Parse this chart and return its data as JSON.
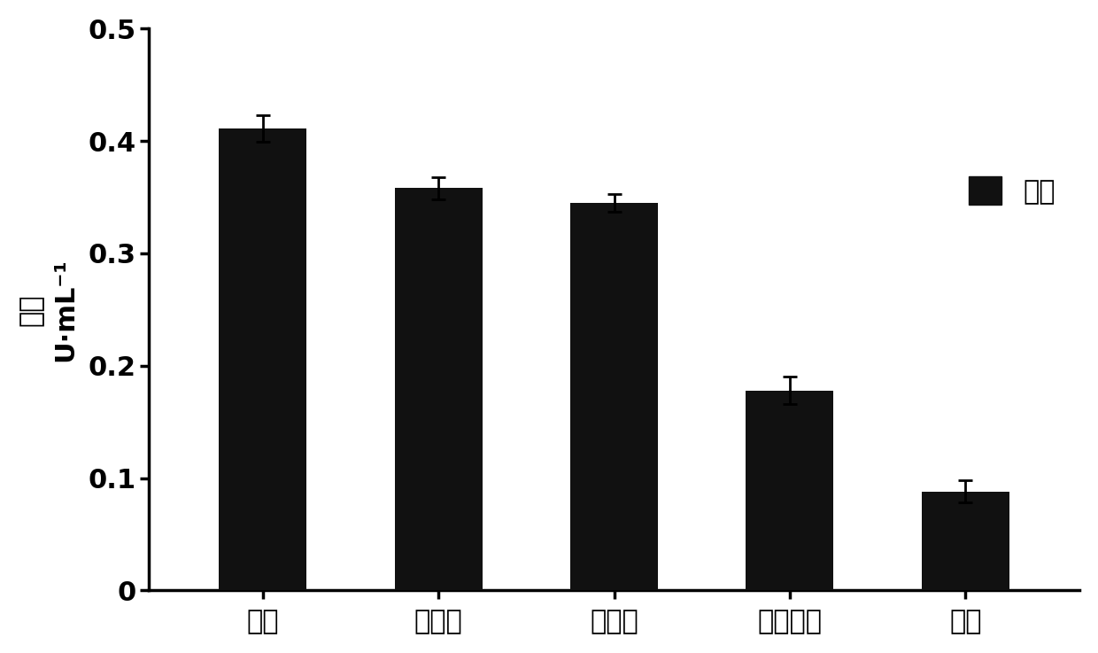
{
  "categories": [
    "肌酸",
    "肌酸酿",
    "肌氨酸",
    "氯化胆碱",
    "空白"
  ],
  "values": [
    0.411,
    0.358,
    0.345,
    0.178,
    0.088
  ],
  "errors": [
    0.012,
    0.01,
    0.008,
    0.012,
    0.01
  ],
  "bar_color": "#111111",
  "ylabel_line1": "酶活",
  "ylabel_line2": "U·mL⁻¹",
  "ylim": [
    0,
    0.5
  ],
  "yticks": [
    0,
    0.1,
    0.2,
    0.3,
    0.4,
    0.5
  ],
  "legend_label": "酶活",
  "background_color": "#ffffff",
  "bar_width": 0.5
}
